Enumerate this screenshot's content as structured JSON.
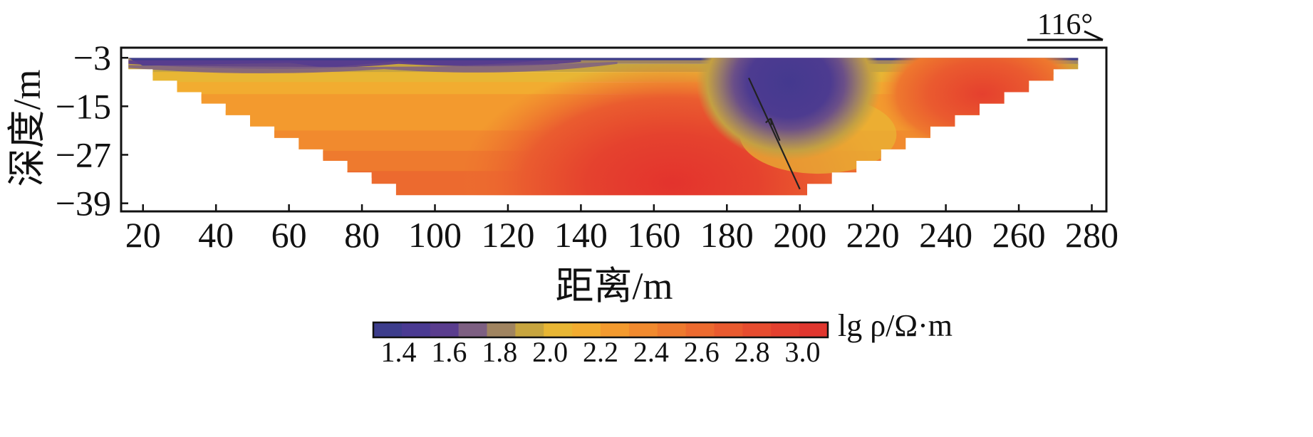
{
  "chart_data": {
    "type": "heatmap",
    "xlabel": "距离/m",
    "ylabel": "深度/m",
    "bearing": "116°",
    "xlim": [
      14,
      284
    ],
    "ylim": [
      -41,
      -0.5
    ],
    "xticks": [
      20,
      40,
      60,
      80,
      100,
      120,
      140,
      160,
      180,
      200,
      220,
      240,
      260,
      280
    ],
    "yticks": [
      -3,
      -15,
      -27,
      -39
    ],
    "xtick_labels": [
      "20",
      "40",
      "60",
      "80",
      "100",
      "120",
      "140",
      "160",
      "180",
      "200",
      "220",
      "240",
      "260",
      "280"
    ],
    "ytick_labels": [
      "−3",
      "−15",
      "−27",
      "−39"
    ],
    "section_outline": {
      "top_depth": -3,
      "bottom_depth": -37,
      "top_x": [
        16,
        283
      ],
      "bottom_x": [
        96,
        202
      ]
    },
    "fault": {
      "x": [
        186,
        200
      ],
      "depth": [
        -8,
        -35.5
      ],
      "arrow_sense": "up"
    },
    "colorbar": {
      "title": "lg ρ/Ω·m",
      "tick_values": [
        1.4,
        1.6,
        1.8,
        2.0,
        2.2,
        2.4,
        2.6,
        2.8,
        3.0
      ],
      "tick_labels": [
        "1.4",
        "1.6",
        "1.8",
        "2.0",
        "2.2",
        "2.4",
        "2.6",
        "2.8",
        "3.0"
      ],
      "min": 1.3,
      "max": 3.1,
      "colors": [
        "#3d3d8c",
        "#4a3a92",
        "#5a3d8e",
        "#7d5f82",
        "#a08460",
        "#c7a53f",
        "#e8b634",
        "#f2ac30",
        "#f39a2e",
        "#f18a2e",
        "#ee7a2e",
        "#ec6a2f",
        "#e95a2f",
        "#e64c2f",
        "#e3402f",
        "#e0362e"
      ]
    },
    "layers": [
      {
        "level": 1.4,
        "points": [
          [
            16,
            -3
          ],
          [
            62,
            -3
          ],
          [
            66,
            -4.8
          ],
          [
            74,
            -3
          ],
          [
            90,
            -3
          ],
          [
            100,
            -4.2
          ],
          [
            130,
            -3
          ],
          [
            233,
            -3
          ],
          [
            238,
            -4.2
          ],
          [
            244,
            -3
          ],
          [
            283,
            -3
          ],
          [
            283,
            -3
          ],
          [
            16,
            -3
          ]
        ],
        "bottom_x_left": 16
      },
      {
        "level": 1.9,
        "depth": -5.5
      },
      {
        "level": 2.1,
        "depth": -8.5
      },
      {
        "level": 2.2,
        "depth": -13
      },
      {
        "level": 2.4,
        "depth": -18
      },
      {
        "level": 2.6,
        "depth": -24
      }
    ],
    "anomaly_low": {
      "x": 195,
      "depth": -7,
      "level": 1.4
    },
    "anomaly_high_left": {
      "x": 165,
      "depth": -34,
      "level": 2.9
    },
    "anomaly_high_right": {
      "x": 250,
      "depth": -12,
      "level": 2.7
    }
  }
}
